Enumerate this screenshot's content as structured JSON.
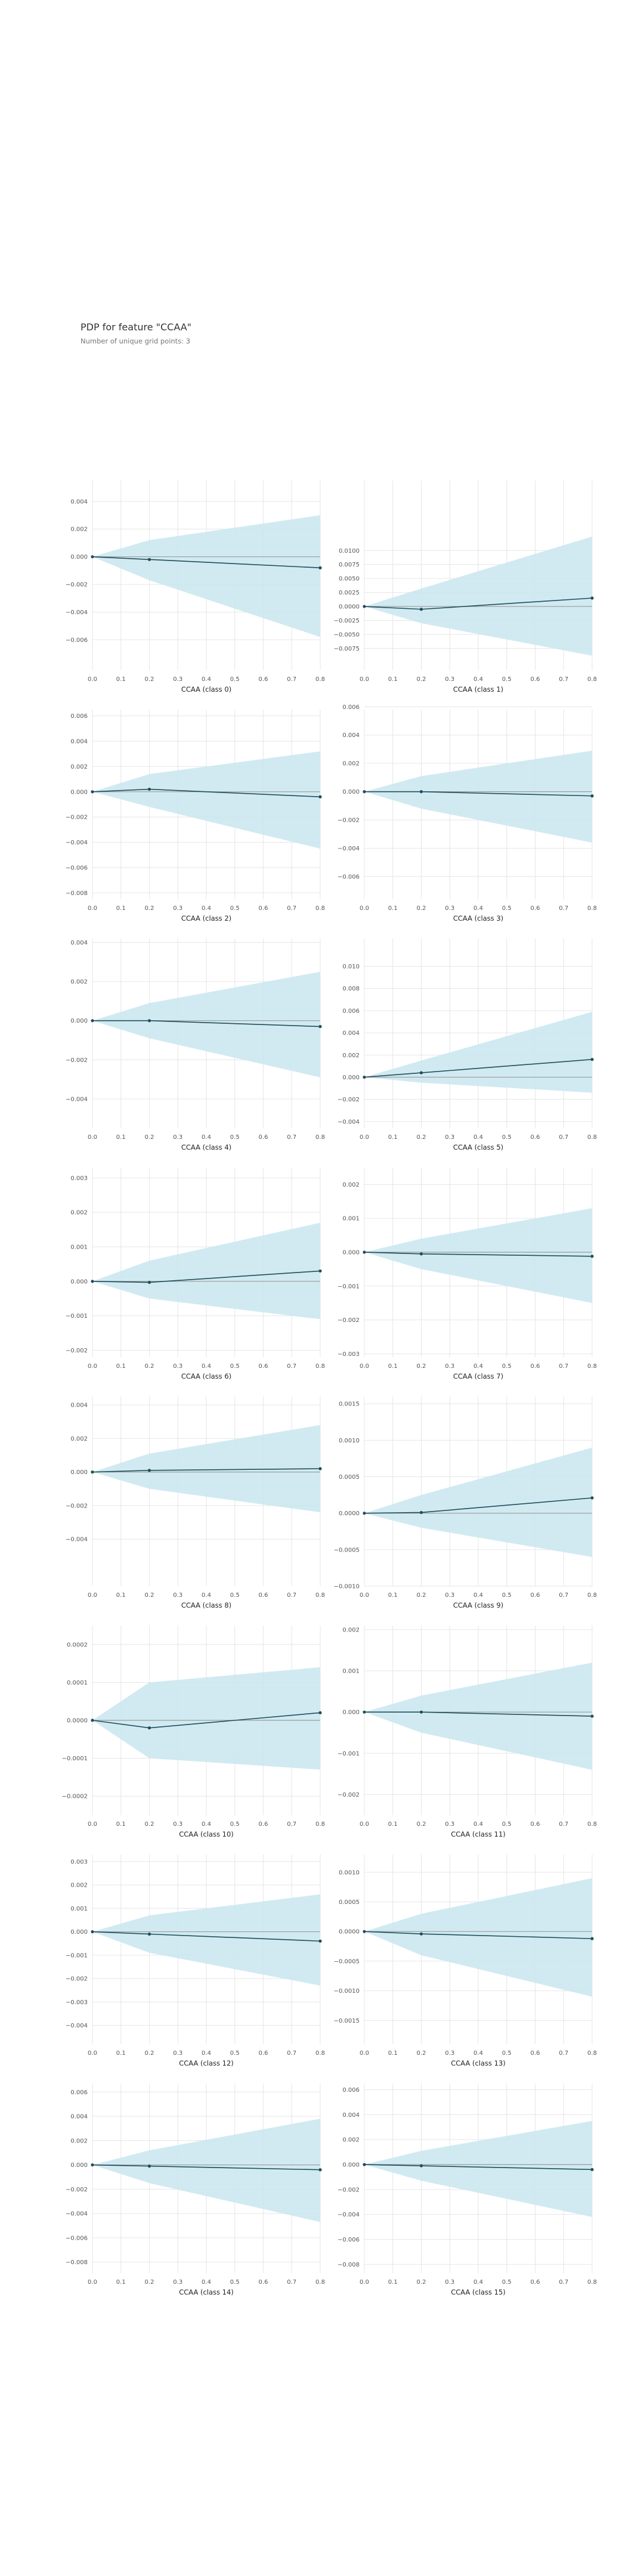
{
  "title": "PDP for feature \"CCAA\"",
  "subtitle": "Number of unique grid points: 3",
  "colors": {
    "band": "#c9e6f0",
    "line": "#1f4e5a",
    "zero_line": "#9a9a9a",
    "grid": "#e6e6e6",
    "tick_text": "#555555",
    "label_text": "#222222"
  },
  "chart_data": [
    {
      "type": "line",
      "xlabel": "CCAA (class 0)",
      "x": [
        0,
        0.2,
        0.8
      ],
      "y": [
        0,
        -0.0002,
        -0.0008
      ],
      "lower": [
        0,
        -0.0017,
        -0.0058
      ],
      "upper": [
        0,
        0.0012,
        0.003
      ],
      "ylim": [
        -0.0082,
        0.0055
      ],
      "yticks": [
        0.004,
        0.002,
        0,
        -0.002,
        -0.004,
        -0.006
      ],
      "yticklabels": [
        "0.004",
        "0.002",
        "0.000",
        "−0.002",
        "−0.004",
        "−0.006"
      ],
      "xticks": [
        0,
        0.1,
        0.2,
        0.3,
        0.4,
        0.5,
        0.6,
        0.7,
        0.8
      ]
    },
    {
      "type": "line",
      "xlabel": "CCAA (class 1)",
      "x": [
        0,
        0.2,
        0.8
      ],
      "y": [
        0,
        -0.0005,
        0.0015
      ],
      "lower": [
        0,
        -0.003,
        -0.0088
      ],
      "upper": [
        0,
        0.0032,
        0.0125
      ],
      "ylim": [
        -0.0114,
        0.0225
      ],
      "yticks": [
        0.01,
        0.0075,
        0.005,
        0.0025,
        0,
        -0.0025,
        -0.005,
        -0.0075
      ],
      "yticklabels": [
        "0.0100",
        "0.0075",
        "0.0050",
        "0.0025",
        "0.0000",
        "−0.0025",
        "−0.0050",
        "−0.0075"
      ],
      "xticks": [
        0,
        0.1,
        0.2,
        0.3,
        0.4,
        0.5,
        0.6,
        0.7,
        0.8
      ]
    },
    {
      "type": "line",
      "xlabel": "CCAA (class 2)",
      "x": [
        0,
        0.2,
        0.8
      ],
      "y": [
        0,
        0.0002,
        -0.0004
      ],
      "lower": [
        0,
        -0.0012,
        -0.0045
      ],
      "upper": [
        0,
        0.0014,
        0.0032
      ],
      "ylim": [
        -0.0085,
        0.0065
      ],
      "yticks": [
        0.006,
        0.004,
        0.002,
        0,
        -0.002,
        -0.004,
        -0.006,
        -0.008
      ],
      "yticklabels": [
        "0.006",
        "0.004",
        "0.002",
        "0.000",
        "−0.002",
        "−0.004",
        "−0.006",
        "−0.008"
      ],
      "xticks": [
        0,
        0.1,
        0.2,
        0.3,
        0.4,
        0.5,
        0.6,
        0.7,
        0.8
      ]
    },
    {
      "type": "line",
      "xlabel": "CCAA (class 3)",
      "x": [
        0,
        0.2,
        0.8
      ],
      "y": [
        0,
        0,
        -0.0003
      ],
      "lower": [
        0,
        -0.0012,
        -0.0036
      ],
      "upper": [
        0,
        0.0011,
        0.0029
      ],
      "ylim": [
        -0.0076,
        0.0058
      ],
      "yticks": [
        0.006,
        0.004,
        0.002,
        0,
        -0.002,
        -0.004,
        -0.006
      ],
      "yticklabels": [
        "0.006",
        "0.004",
        "0.002",
        "0.000",
        "−0.002",
        "−0.004",
        "−0.006"
      ],
      "xticks": [
        0,
        0.1,
        0.2,
        0.3,
        0.4,
        0.5,
        0.6,
        0.7,
        0.8
      ]
    },
    {
      "type": "line",
      "xlabel": "CCAA (class 4)",
      "x": [
        0,
        0.2,
        0.8
      ],
      "y": [
        0,
        0,
        -0.0003
      ],
      "lower": [
        0,
        -0.0009,
        -0.0029
      ],
      "upper": [
        0,
        0.0009,
        0.0025
      ],
      "ylim": [
        -0.0055,
        0.0042
      ],
      "yticks": [
        0.004,
        0.002,
        0,
        -0.002,
        -0.004
      ],
      "yticklabels": [
        "0.004",
        "0.002",
        "0.000",
        "−0.002",
        "−0.004"
      ],
      "xticks": [
        0,
        0.1,
        0.2,
        0.3,
        0.4,
        0.5,
        0.6,
        0.7,
        0.8
      ]
    },
    {
      "type": "line",
      "xlabel": "CCAA (class 5)",
      "x": [
        0,
        0.2,
        0.8
      ],
      "y": [
        0,
        0.0004,
        0.0016
      ],
      "lower": [
        0,
        -0.0005,
        -0.0014
      ],
      "upper": [
        0,
        0.0015,
        0.0059
      ],
      "ylim": [
        -0.0046,
        0.0125
      ],
      "yticks": [
        0.01,
        0.008,
        0.006,
        0.004,
        0.002,
        0,
        -0.002,
        -0.004
      ],
      "yticklabels": [
        "0.010",
        "0.008",
        "0.006",
        "0.004",
        "0.002",
        "0.000",
        "−0.002",
        "−0.004"
      ],
      "xticks": [
        0,
        0.1,
        0.2,
        0.3,
        0.4,
        0.5,
        0.6,
        0.7,
        0.8
      ]
    },
    {
      "type": "line",
      "xlabel": "CCAA (class 6)",
      "x": [
        0,
        0.2,
        0.8
      ],
      "y": [
        0,
        -3e-05,
        0.0003
      ],
      "lower": [
        0,
        -0.0005,
        -0.0011
      ],
      "upper": [
        0,
        0.0006,
        0.0017
      ],
      "ylim": [
        -0.0022,
        0.0033
      ],
      "yticks": [
        0.003,
        0.002,
        0.001,
        0,
        -0.001,
        -0.002
      ],
      "yticklabels": [
        "0.003",
        "0.002",
        "0.001",
        "0.000",
        "−0.001",
        "−0.002"
      ],
      "xticks": [
        0,
        0.1,
        0.2,
        0.3,
        0.4,
        0.5,
        0.6,
        0.7,
        0.8
      ]
    },
    {
      "type": "line",
      "xlabel": "CCAA (class 7)",
      "x": [
        0,
        0.2,
        0.8
      ],
      "y": [
        0,
        -5e-05,
        -0.00012
      ],
      "lower": [
        0,
        -0.0005,
        -0.0015
      ],
      "upper": [
        0,
        0.0004,
        0.0013
      ],
      "ylim": [
        -0.0031,
        0.0025
      ],
      "yticks": [
        0.002,
        0.001,
        0,
        -0.001,
        -0.002,
        -0.003
      ],
      "yticklabels": [
        "0.002",
        "0.001",
        "0.000",
        "−0.001",
        "−0.002",
        "−0.003"
      ],
      "xticks": [
        0,
        0.1,
        0.2,
        0.3,
        0.4,
        0.5,
        0.6,
        0.7,
        0.8
      ]
    },
    {
      "type": "line",
      "xlabel": "CCAA (class 8)",
      "x": [
        0,
        0.2,
        0.8
      ],
      "y": [
        0,
        0.0001,
        0.0002
      ],
      "lower": [
        0,
        -0.001,
        -0.0024
      ],
      "upper": [
        0,
        0.0011,
        0.0028
      ],
      "ylim": [
        -0.0068,
        0.0045
      ],
      "yticks": [
        0.004,
        0.002,
        0,
        -0.002,
        -0.004
      ],
      "yticklabels": [
        "0.004",
        "0.002",
        "0.000",
        "−0.002",
        "−0.004"
      ],
      "xticks": [
        0,
        0.1,
        0.2,
        0.3,
        0.4,
        0.5,
        0.6,
        0.7,
        0.8
      ]
    },
    {
      "type": "line",
      "xlabel": "CCAA (class 9)",
      "x": [
        0,
        0.2,
        0.8
      ],
      "y": [
        0,
        1e-05,
        0.00021
      ],
      "lower": [
        0,
        -0.0002,
        -0.0006
      ],
      "upper": [
        0,
        0.00025,
        0.0009
      ],
      "ylim": [
        -0.001,
        0.0016
      ],
      "yticks": [
        0.0015,
        0.001,
        0.0005,
        0,
        -0.0005,
        -0.001
      ],
      "yticklabels": [
        "0.0015",
        "0.0010",
        "0.0005",
        "0.0000",
        "−0.0005",
        "−0.0010"
      ],
      "xticks": [
        0,
        0.1,
        0.2,
        0.3,
        0.4,
        0.5,
        0.6,
        0.7,
        0.8
      ]
    },
    {
      "type": "line",
      "xlabel": "CCAA (class 10)",
      "x": [
        0,
        0.2,
        0.8
      ],
      "y": [
        0,
        -2e-05,
        2e-05
      ],
      "lower": [
        0,
        -0.0001,
        -0.00013
      ],
      "upper": [
        0,
        0.0001,
        0.00014
      ],
      "ylim": [
        -0.00025,
        0.00025
      ],
      "yticks": [
        0.0002,
        0.0001,
        0,
        -0.0001,
        -0.0002
      ],
      "yticklabels": [
        "0.0002",
        "0.0001",
        "0.0000",
        "−0.0001",
        "−0.0002"
      ],
      "xticks": [
        0,
        0.1,
        0.2,
        0.3,
        0.4,
        0.5,
        0.6,
        0.7,
        0.8
      ]
    },
    {
      "type": "line",
      "xlabel": "CCAA (class 11)",
      "x": [
        0,
        0.2,
        0.8
      ],
      "y": [
        0,
        0,
        -0.0001
      ],
      "lower": [
        0,
        -0.0005,
        -0.0014
      ],
      "upper": [
        0,
        0.0004,
        0.0012
      ],
      "ylim": [
        -0.0025,
        0.0021
      ],
      "yticks": [
        0.002,
        0.001,
        0,
        -0.001,
        -0.002
      ],
      "yticklabels": [
        "0.002",
        "0.001",
        "0.000",
        "−0.001",
        "−0.002"
      ],
      "xticks": [
        0,
        0.1,
        0.2,
        0.3,
        0.4,
        0.5,
        0.6,
        0.7,
        0.8
      ]
    },
    {
      "type": "line",
      "xlabel": "CCAA (class 12)",
      "x": [
        0,
        0.2,
        0.8
      ],
      "y": [
        0,
        -0.0001,
        -0.0004
      ],
      "lower": [
        0,
        -0.0009,
        -0.0023
      ],
      "upper": [
        0,
        0.0007,
        0.0016
      ],
      "ylim": [
        -0.0048,
        0.0033
      ],
      "yticks": [
        0.003,
        0.002,
        0.001,
        0,
        -0.001,
        -0.002,
        -0.003,
        -0.004
      ],
      "yticklabels": [
        "0.003",
        "0.002",
        "0.001",
        "0.000",
        "−0.001",
        "−0.002",
        "−0.003",
        "−0.004"
      ],
      "xticks": [
        0,
        0.1,
        0.2,
        0.3,
        0.4,
        0.5,
        0.6,
        0.7,
        0.8
      ]
    },
    {
      "type": "line",
      "xlabel": "CCAA (class 13)",
      "x": [
        0,
        0.2,
        0.8
      ],
      "y": [
        0,
        -4e-05,
        -0.00012
      ],
      "lower": [
        0,
        -0.0004,
        -0.0011
      ],
      "upper": [
        0,
        0.0003,
        0.0009
      ],
      "ylim": [
        -0.0019,
        0.0013
      ],
      "yticks": [
        0.001,
        0.0005,
        0,
        -0.0005,
        -0.001,
        -0.0015
      ],
      "yticklabels": [
        "0.0010",
        "0.0005",
        "0.0000",
        "−0.0005",
        "−0.0010",
        "−0.0015"
      ],
      "xticks": [
        0,
        0.1,
        0.2,
        0.3,
        0.4,
        0.5,
        0.6,
        0.7,
        0.8
      ]
    },
    {
      "type": "line",
      "xlabel": "CCAA (class 14)",
      "x": [
        0,
        0.2,
        0.8
      ],
      "y": [
        0,
        -0.0001,
        -0.0004
      ],
      "lower": [
        0,
        -0.0015,
        -0.0047
      ],
      "upper": [
        0,
        0.0012,
        0.0038
      ],
      "ylim": [
        -0.0089,
        0.0067
      ],
      "yticks": [
        0.006,
        0.004,
        0.002,
        0,
        -0.002,
        -0.004,
        -0.006,
        -0.008
      ],
      "yticklabels": [
        "0.006",
        "0.004",
        "0.002",
        "0.000",
        "−0.002",
        "−0.004",
        "−0.006",
        "−0.008"
      ],
      "xticks": [
        0,
        0.1,
        0.2,
        0.3,
        0.4,
        0.5,
        0.6,
        0.7,
        0.8
      ]
    },
    {
      "type": "line",
      "xlabel": "CCAA (class 15)",
      "x": [
        0,
        0.2,
        0.8
      ],
      "y": [
        0,
        -0.0001,
        -0.0004
      ],
      "lower": [
        0,
        -0.0013,
        -0.0042
      ],
      "upper": [
        0,
        0.0011,
        0.0035
      ],
      "ylim": [
        -0.0087,
        0.0065
      ],
      "yticks": [
        0.006,
        0.004,
        0.002,
        0,
        -0.002,
        -0.004,
        -0.006,
        -0.008
      ],
      "yticklabels": [
        "0.006",
        "0.004",
        "0.002",
        "0.000",
        "−0.002",
        "−0.004",
        "−0.006",
        "−0.008"
      ],
      "xticks": [
        0,
        0.1,
        0.2,
        0.3,
        0.4,
        0.5,
        0.6,
        0.7,
        0.8
      ]
    }
  ]
}
